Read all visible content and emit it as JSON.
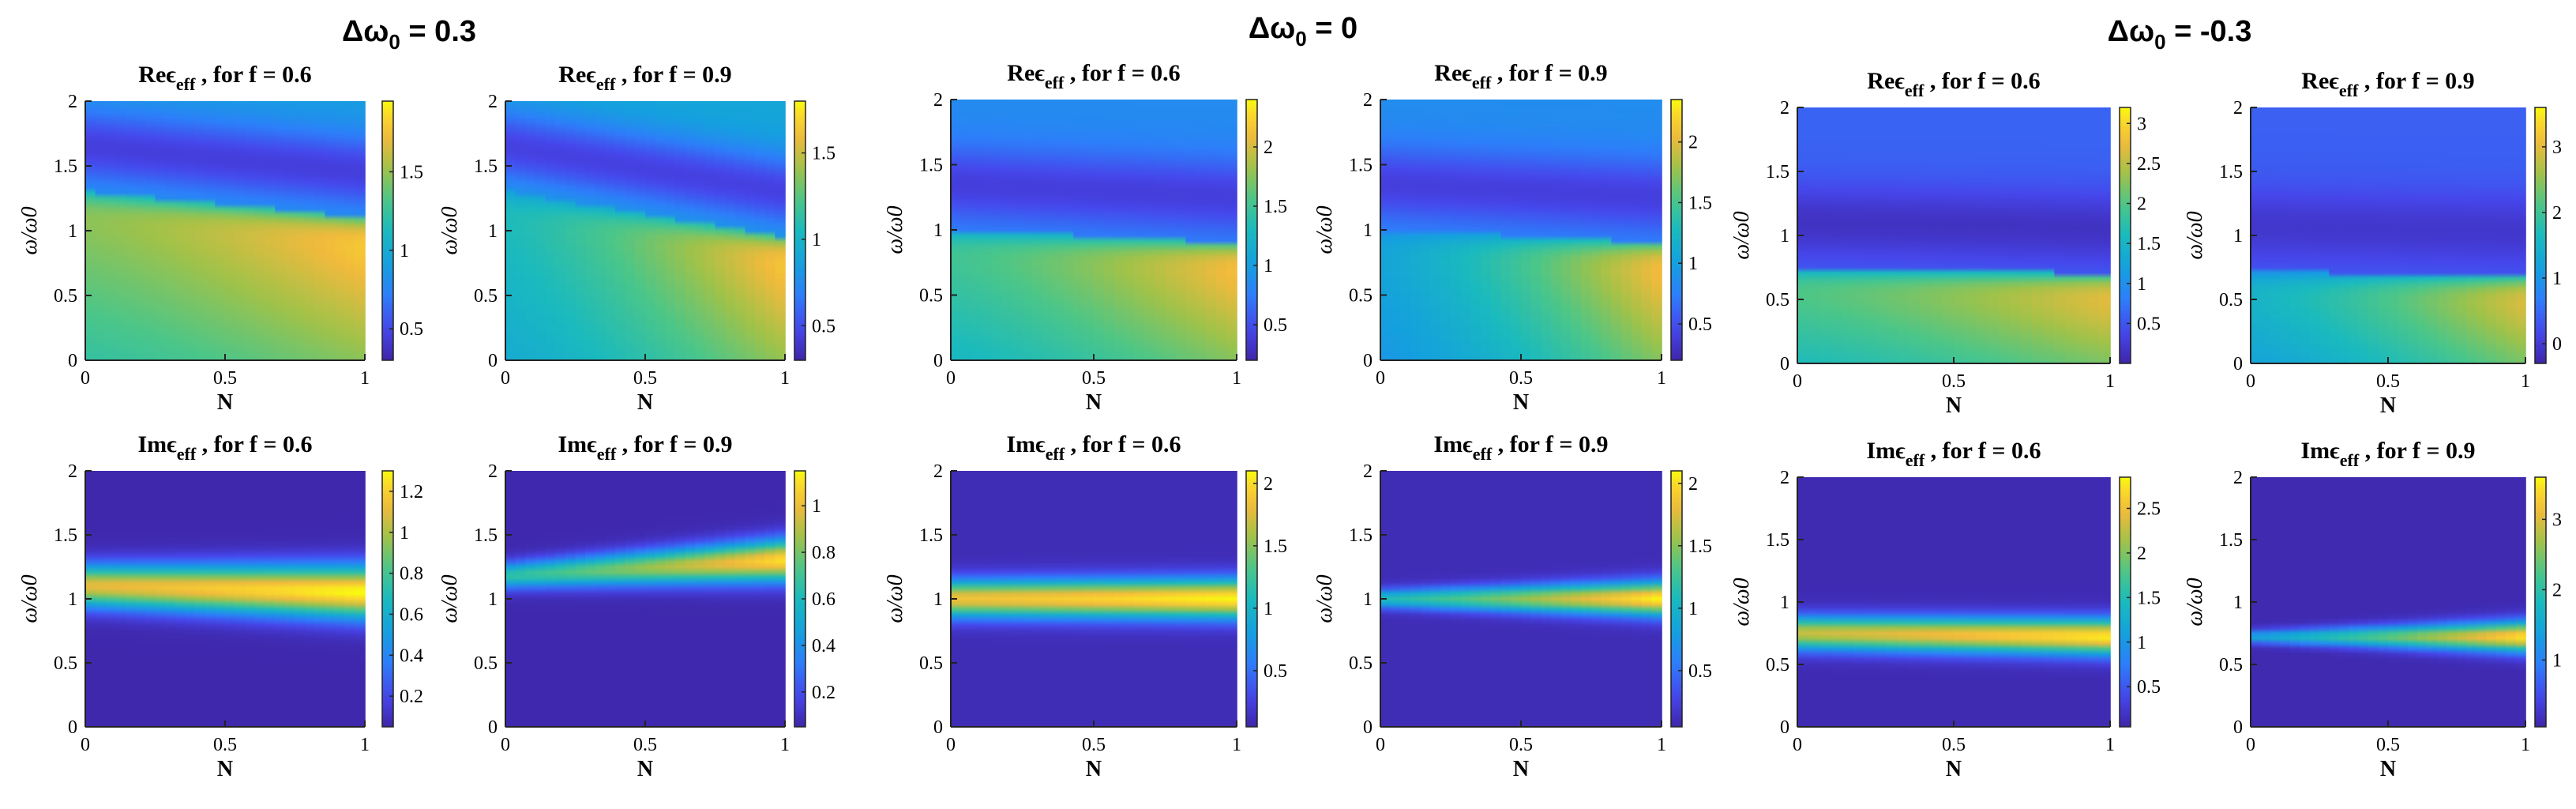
{
  "figure": {
    "groups": [
      {
        "title_main": "Δω",
        "title_sub": "0",
        "title_rest": " = 0.3"
      },
      {
        "title_main": "Δω",
        "title_sub": "0",
        "title_rest": " = 0"
      },
      {
        "title_main": "Δω",
        "title_sub": "0",
        "title_rest": " = -0.3"
      }
    ]
  },
  "chart_data": [
    {
      "type": "heatmap",
      "group": 0,
      "row": 0,
      "title": "Reϵeff , for f = 0.6",
      "title_pre": "Reϵ",
      "title_sub": "eff",
      "title_post": " , for f = 0.6",
      "xlabel": "N",
      "ylabel": "ω/ω0",
      "xlim": [
        0,
        1
      ],
      "ylim": [
        0,
        2
      ],
      "xticks": [
        0,
        0.5,
        1
      ],
      "xticklabels": [
        "0",
        "0.5",
        "1"
      ],
      "yticks": [
        0,
        0.5,
        1,
        1.5,
        2
      ],
      "yticklabels": [
        "0",
        "0.5",
        "1",
        "1.5",
        "2"
      ],
      "colorbar": {
        "min": 0.3,
        "max": 1.95,
        "ticks": [
          0.5,
          1,
          1.5
        ],
        "ticklabels": [
          "0.5",
          "1",
          "1.5"
        ]
      },
      "field": {
        "kind": "re",
        "w0a": 1.3,
        "w0b": 1.1,
        "peakA": 1.55,
        "peakB": 1.9,
        "pivot": 0.8,
        "floor": 0.4,
        "dipw": 0.3
      }
    },
    {
      "type": "heatmap",
      "group": 0,
      "row": 0,
      "title": "Reϵeff , for f = 0.9",
      "title_pre": "Reϵ",
      "title_sub": "eff",
      "title_post": " , for f = 0.9",
      "xlabel": "N",
      "ylabel": "ω/ω0",
      "xlim": [
        0,
        1
      ],
      "ylim": [
        0,
        2
      ],
      "xticks": [
        0,
        0.5,
        1
      ],
      "xticklabels": [
        "0",
        "0.5",
        "1"
      ],
      "yticks": [
        0,
        0.5,
        1,
        1.5,
        2
      ],
      "yticklabels": [
        "0",
        "0.5",
        "1",
        "1.5",
        "2"
      ],
      "colorbar": {
        "min": 0.3,
        "max": 1.8,
        "ticks": [
          0.5,
          1,
          1.5
        ],
        "ticklabels": [
          "0.5",
          "1",
          "1.5"
        ]
      },
      "field": {
        "kind": "re",
        "w0a": 1.3,
        "w0b": 0.95,
        "peakA": 1.1,
        "peakB": 1.75,
        "pivot": 0.8,
        "floor": 0.4,
        "dipw": 0.3
      }
    },
    {
      "type": "heatmap",
      "group": 1,
      "row": 0,
      "title": "Reϵeff , for f = 0.6",
      "title_pre": "Reϵ",
      "title_sub": "eff",
      "title_post": " , for f = 0.6",
      "xlabel": "N",
      "ylabel": "ω/ω0",
      "xlim": [
        0,
        1
      ],
      "ylim": [
        0,
        2
      ],
      "xticks": [
        0,
        0.5,
        1
      ],
      "xticklabels": [
        "0",
        "0.5",
        "1"
      ],
      "yticks": [
        0,
        0.5,
        1,
        1.5,
        2
      ],
      "yticklabels": [
        "0",
        "0.5",
        "1",
        "1.5",
        "2"
      ],
      "colorbar": {
        "min": 0.2,
        "max": 2.4,
        "ticks": [
          0.5,
          1,
          1.5,
          2
        ],
        "ticklabels": [
          "0.5",
          "1",
          "1.5",
          "2"
        ]
      },
      "field": {
        "kind": "re",
        "w0a": 1.0,
        "w0b": 0.9,
        "peakA": 1.6,
        "peakB": 2.3,
        "pivot": 0.6,
        "floor": 0.35,
        "dipw": 0.3
      }
    },
    {
      "type": "heatmap",
      "group": 1,
      "row": 0,
      "title": "Reϵeff , for f = 0.9",
      "title_pre": "Reϵ",
      "title_sub": "eff",
      "title_post": " , for f = 0.9",
      "xlabel": "N",
      "ylabel": "ω/ω0",
      "xlim": [
        0,
        1
      ],
      "ylim": [
        0,
        2
      ],
      "xticks": [
        0,
        0.5,
        1
      ],
      "xticklabels": [
        "0",
        "0.5",
        "1"
      ],
      "yticks": [
        0,
        0.5,
        1,
        1.5,
        2
      ],
      "yticklabels": [
        "0",
        "0.5",
        "1",
        "1.5",
        "2"
      ],
      "colorbar": {
        "min": 0.2,
        "max": 2.35,
        "ticks": [
          0.5,
          1,
          1.5,
          2
        ],
        "ticklabels": [
          "0.5",
          "1",
          "1.5",
          "2"
        ]
      },
      "field": {
        "kind": "re",
        "w0a": 1.0,
        "w0b": 0.9,
        "peakA": 1.1,
        "peakB": 2.25,
        "pivot": 0.6,
        "floor": 0.35,
        "dipw": 0.3
      }
    },
    {
      "type": "heatmap",
      "group": 2,
      "row": 0,
      "title": "Reϵeff , for f = 0.6",
      "title_pre": "Reϵ",
      "title_sub": "eff",
      "title_post": " , for f = 0.6",
      "xlabel": "N",
      "ylabel": "ω/ω0",
      "xlim": [
        0,
        1
      ],
      "ylim": [
        0,
        2
      ],
      "xticks": [
        0,
        0.5,
        1
      ],
      "xticklabels": [
        "0",
        "0.5",
        "1"
      ],
      "yticks": [
        0,
        0.5,
        1,
        1.5,
        2
      ],
      "yticklabels": [
        "0",
        "0.5",
        "1",
        "1.5",
        "2"
      ],
      "colorbar": {
        "min": 0.0,
        "max": 3.2,
        "ticks": [
          0.5,
          1,
          1.5,
          2,
          2.5,
          3
        ],
        "ticklabels": [
          "0.5",
          "1",
          "1.5",
          "2",
          "2.5",
          "3"
        ]
      },
      "field": {
        "kind": "re",
        "w0a": 0.75,
        "w0b": 0.7,
        "peakA": 2.2,
        "peakB": 3.0,
        "pivot": 0.4,
        "floor": 0.1,
        "dipw": 0.3
      }
    },
    {
      "type": "heatmap",
      "group": 2,
      "row": 0,
      "title": "Reϵeff , for f = 0.9",
      "title_pre": "Reϵ",
      "title_sub": "eff",
      "title_post": " , for f = 0.9",
      "xlabel": "N",
      "ylabel": "ω/ω0",
      "xlim": [
        0,
        1
      ],
      "ylim": [
        0,
        2
      ],
      "xticks": [
        0,
        0.5,
        1
      ],
      "xticklabels": [
        "0",
        "0.5",
        "1"
      ],
      "yticks": [
        0,
        0.5,
        1,
        1.5,
        2
      ],
      "yticklabels": [
        "0",
        "0.5",
        "1",
        "1.5",
        "2"
      ],
      "colorbar": {
        "min": -0.3,
        "max": 3.6,
        "ticks": [
          0,
          1,
          2,
          3
        ],
        "ticklabels": [
          "0",
          "1",
          "2",
          "3"
        ]
      },
      "field": {
        "kind": "re",
        "w0a": 0.72,
        "w0b": 0.68,
        "peakA": 1.7,
        "peakB": 3.3,
        "pivot": 0.4,
        "floor": -0.1,
        "dipw": 0.3
      }
    },
    {
      "type": "heatmap",
      "group": 0,
      "row": 1,
      "title": "Imϵeff , for f = 0.6",
      "title_pre": "Imϵ",
      "title_sub": "eff",
      "title_post": " , for f = 0.6",
      "xlabel": "N",
      "ylabel": "ω/ω0",
      "xlim": [
        0,
        1
      ],
      "ylim": [
        0,
        2
      ],
      "xticks": [
        0,
        0.5,
        1
      ],
      "xticklabels": [
        "0",
        "0.5",
        "1"
      ],
      "yticks": [
        0,
        0.5,
        1,
        1.5,
        2
      ],
      "yticklabels": [
        "0",
        "0.5",
        "1",
        "1.5",
        "2"
      ],
      "colorbar": {
        "min": 0.05,
        "max": 1.3,
        "ticks": [
          0.2,
          0.4,
          0.6,
          0.8,
          1,
          1.2
        ],
        "ticklabels": [
          "0.2",
          "0.4",
          "0.6",
          "0.8",
          "1",
          "1.2"
        ]
      },
      "field": {
        "kind": "im",
        "cA": 1.1,
        "cB": 1.05,
        "sA": 0.16,
        "sB": 0.2,
        "ampA": 1.05,
        "ampB": 1.25,
        "floor": 0.06
      }
    },
    {
      "type": "heatmap",
      "group": 0,
      "row": 1,
      "title": "Imϵeff , for f = 0.9",
      "title_pre": "Imϵ",
      "title_sub": "eff",
      "title_post": " , for f = 0.9",
      "xlabel": "N",
      "ylabel": "ω/ω0",
      "xlim": [
        0,
        1
      ],
      "ylim": [
        0,
        2
      ],
      "xticks": [
        0,
        0.5,
        1
      ],
      "xticklabels": [
        "0",
        "0.5",
        "1"
      ],
      "yticks": [
        0,
        0.5,
        1,
        1.5,
        2
      ],
      "yticklabels": [
        "0",
        "0.5",
        "1",
        "1.5",
        "2"
      ],
      "colorbar": {
        "min": 0.05,
        "max": 1.15,
        "ticks": [
          0.2,
          0.4,
          0.6,
          0.8,
          1
        ],
        "ticklabels": [
          "0.2",
          "0.4",
          "0.6",
          "0.8",
          "1"
        ]
      },
      "field": {
        "kind": "im",
        "cA": 1.18,
        "cB": 1.3,
        "sA": 0.1,
        "sB": 0.16,
        "ampA": 0.6,
        "ampB": 1.05,
        "floor": 0.06
      }
    },
    {
      "type": "heatmap",
      "group": 1,
      "row": 1,
      "title": "Imϵeff , for f = 0.6",
      "title_pre": "Imϵ",
      "title_sub": "eff",
      "title_post": " , for f = 0.6",
      "xlabel": "N",
      "ylabel": "ω/ω0",
      "xlim": [
        0,
        1
      ],
      "ylim": [
        0,
        2
      ],
      "xticks": [
        0,
        0.5,
        1
      ],
      "xticklabels": [
        "0",
        "0.5",
        "1"
      ],
      "yticks": [
        0,
        0.5,
        1,
        1.5,
        2
      ],
      "yticklabels": [
        "0",
        "0.5",
        "1",
        "1.5",
        "2"
      ],
      "colorbar": {
        "min": 0.05,
        "max": 2.1,
        "ticks": [
          0.5,
          1,
          1.5,
          2
        ],
        "ticklabels": [
          "0.5",
          "1",
          "1.5",
          "2"
        ]
      },
      "field": {
        "kind": "im",
        "cA": 1.0,
        "cB": 1.0,
        "sA": 0.14,
        "sB": 0.15,
        "ampA": 1.75,
        "ampB": 2.0,
        "floor": 0.1
      }
    },
    {
      "type": "heatmap",
      "group": 1,
      "row": 1,
      "title": "Imϵeff , for f = 0.9",
      "title_pre": "Imϵ",
      "title_sub": "eff",
      "title_post": " , for f = 0.9",
      "xlabel": "N",
      "ylabel": "ω/ω0",
      "xlim": [
        0,
        1
      ],
      "ylim": [
        0,
        2
      ],
      "xticks": [
        0,
        0.5,
        1
      ],
      "xticklabels": [
        "0",
        "0.5",
        "1"
      ],
      "yticks": [
        0,
        0.5,
        1,
        1.5,
        2
      ],
      "yticklabels": [
        "0",
        "0.5",
        "1",
        "1.5",
        "2"
      ],
      "colorbar": {
        "min": 0.05,
        "max": 2.1,
        "ticks": [
          0.5,
          1,
          1.5,
          2
        ],
        "ticklabels": [
          "0.5",
          "1",
          "1.5",
          "2"
        ]
      },
      "field": {
        "kind": "im",
        "cA": 1.0,
        "cB": 1.0,
        "sA": 0.07,
        "sB": 0.13,
        "ampA": 1.0,
        "ampB": 2.0,
        "floor": 0.1
      }
    },
    {
      "type": "heatmap",
      "group": 2,
      "row": 1,
      "title": "Imϵeff , for f = 0.6",
      "title_pre": "Imϵ",
      "title_sub": "eff",
      "title_post": " , for f = 0.6",
      "xlabel": "N",
      "ylabel": "ω/ω0",
      "xlim": [
        0,
        1
      ],
      "ylim": [
        0,
        2
      ],
      "xticks": [
        0,
        0.5,
        1
      ],
      "xticklabels": [
        "0",
        "0.5",
        "1"
      ],
      "yticks": [
        0,
        0.5,
        1,
        1.5,
        2
      ],
      "yticklabels": [
        "0",
        "0.5",
        "1",
        "1.5",
        "2"
      ],
      "colorbar": {
        "min": 0.05,
        "max": 2.85,
        "ticks": [
          0.5,
          1,
          1.5,
          2,
          2.5
        ],
        "ticklabels": [
          "0.5",
          "1",
          "1.5",
          "2",
          "2.5"
        ]
      },
      "field": {
        "kind": "im",
        "cA": 0.75,
        "cB": 0.72,
        "sA": 0.13,
        "sB": 0.14,
        "ampA": 2.2,
        "ampB": 2.7,
        "floor": 0.1
      }
    },
    {
      "type": "heatmap",
      "group": 2,
      "row": 1,
      "title": "Imϵeff , for f = 0.9",
      "title_pre": "Imϵ",
      "title_sub": "eff",
      "title_post": " , for f = 0.9",
      "xlabel": "N",
      "ylabel": "ω/ω0",
      "xlim": [
        0,
        1
      ],
      "ylim": [
        0,
        2
      ],
      "xticks": [
        0,
        0.5,
        1
      ],
      "xticklabels": [
        "0",
        "0.5",
        "1"
      ],
      "yticks": [
        0,
        0.5,
        1,
        1.5,
        2
      ],
      "yticklabels": [
        "0",
        "0.5",
        "1",
        "1.5",
        "2"
      ],
      "colorbar": {
        "min": 0.05,
        "max": 3.6,
        "ticks": [
          1,
          2,
          3
        ],
        "ticklabels": [
          "1",
          "2",
          "3"
        ]
      },
      "field": {
        "kind": "im",
        "cA": 0.72,
        "cB": 0.72,
        "sA": 0.05,
        "sB": 0.12,
        "ampA": 1.4,
        "ampB": 3.4,
        "floor": 0.1
      }
    }
  ]
}
